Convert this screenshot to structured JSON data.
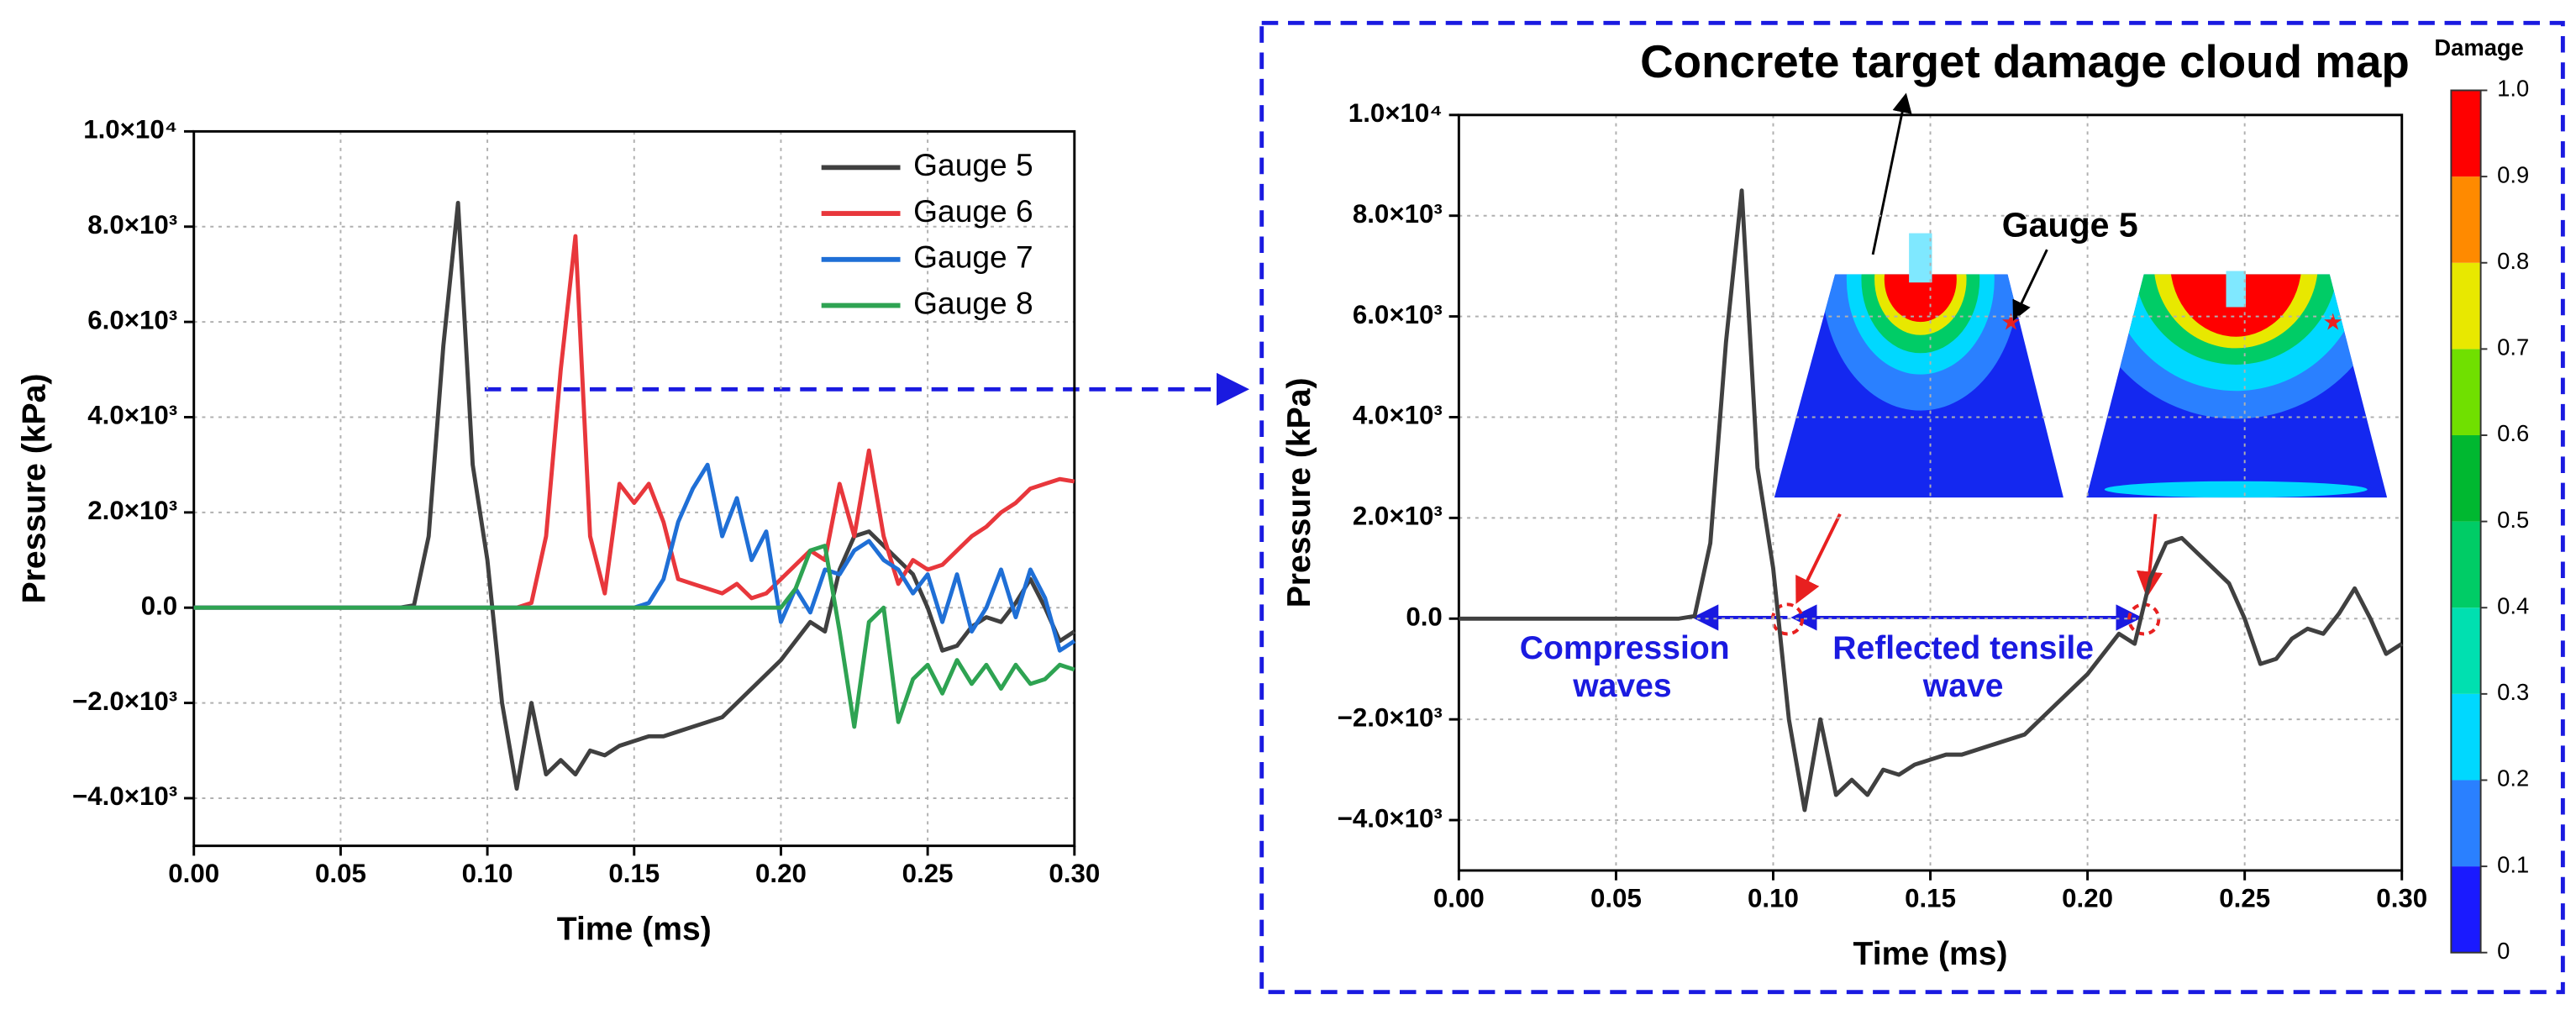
{
  "chart_data": [
    {
      "type": "line",
      "xlabel": "Time (ms)",
      "ylabel": "Pressure (kPa)",
      "legend": "upper right",
      "grid": true,
      "xlim": [
        0,
        0.3
      ],
      "ylim": [
        -5000,
        10000
      ],
      "xticks": [
        {
          "value": 0,
          "label": "0.00"
        },
        {
          "value": 0.05,
          "label": "0.05"
        },
        {
          "value": 0.1,
          "label": "0.10"
        },
        {
          "value": 0.15,
          "label": "0.15"
        },
        {
          "value": 0.2,
          "label": "0.20"
        },
        {
          "value": 0.25,
          "label": "0.25"
        },
        {
          "value": 0.3,
          "label": "0.30"
        }
      ],
      "yticks": [
        {
          "value": -4000,
          "label": "−4.0×10³"
        },
        {
          "value": -2000,
          "label": "−2.0×10³"
        },
        {
          "value": 0,
          "label": "0.0"
        },
        {
          "value": 2000,
          "label": "2.0×10³"
        },
        {
          "value": 4000,
          "label": "4.0×10³"
        },
        {
          "value": 6000,
          "label": "6.0×10³"
        },
        {
          "value": 8000,
          "label": "8.0×10³"
        },
        {
          "value": 10000,
          "label": "1.0×10⁴"
        }
      ],
      "x": [
        0,
        0.005,
        0.01,
        0.015,
        0.02,
        0.025,
        0.03,
        0.035,
        0.04,
        0.045,
        0.05,
        0.055,
        0.06,
        0.065,
        0.07,
        0.075,
        0.08,
        0.085,
        0.09,
        0.095,
        0.1,
        0.105,
        0.11,
        0.115,
        0.12,
        0.125,
        0.13,
        0.135,
        0.14,
        0.145,
        0.15,
        0.155,
        0.16,
        0.165,
        0.17,
        0.175,
        0.18,
        0.185,
        0.19,
        0.195,
        0.2,
        0.205,
        0.21,
        0.215,
        0.22,
        0.225,
        0.23,
        0.235,
        0.24,
        0.245,
        0.25,
        0.255,
        0.26,
        0.265,
        0.27,
        0.275,
        0.28,
        0.285,
        0.29,
        0.295,
        0.3
      ],
      "series": [
        {
          "name": "Gauge 5",
          "color": "#404040",
          "values": [
            0,
            0,
            0,
            0,
            0,
            0,
            0,
            0,
            0,
            0,
            0,
            0,
            0,
            0,
            0,
            50,
            1500,
            5500,
            8500,
            3000,
            1000,
            -2000,
            -3800,
            -2000,
            -3500,
            -3200,
            -3500,
            -3000,
            -3100,
            -2900,
            -2800,
            -2700,
            -2700,
            -2600,
            -2500,
            -2400,
            -2300,
            -2000,
            -1700,
            -1400,
            -1100,
            -700,
            -300,
            -500,
            800,
            1500,
            1600,
            1300,
            1000,
            700,
            0,
            -900,
            -800,
            -400,
            -200,
            -300,
            100,
            600,
            0,
            -700,
            -500
          ]
        },
        {
          "name": "Gauge 6",
          "color": "#e8373c",
          "values": [
            0,
            0,
            0,
            0,
            0,
            0,
            0,
            0,
            0,
            0,
            0,
            0,
            0,
            0,
            0,
            0,
            0,
            0,
            0,
            0,
            0,
            0,
            0,
            100,
            1500,
            5000,
            7800,
            1500,
            300,
            2600,
            2200,
            2600,
            1800,
            600,
            500,
            400,
            300,
            500,
            200,
            300,
            600,
            900,
            1200,
            1000,
            2600,
            1500,
            3300,
            1500,
            500,
            1000,
            800,
            900,
            1200,
            1500,
            1700,
            2000,
            2200,
            2500,
            2600,
            2700,
            2650
          ]
        },
        {
          "name": "Gauge 7",
          "color": "#1f6fd6",
          "values": [
            0,
            0,
            0,
            0,
            0,
            0,
            0,
            0,
            0,
            0,
            0,
            0,
            0,
            0,
            0,
            0,
            0,
            0,
            0,
            0,
            0,
            0,
            0,
            0,
            0,
            0,
            0,
            0,
            0,
            0,
            0,
            100,
            600,
            1800,
            2500,
            3000,
            1500,
            2300,
            1000,
            1600,
            -300,
            400,
            -100,
            800,
            700,
            1200,
            1400,
            1000,
            800,
            300,
            700,
            -300,
            700,
            -500,
            0,
            800,
            -200,
            800,
            200,
            -900,
            -700
          ]
        },
        {
          "name": "Gauge 8",
          "color": "#2ea352",
          "values": [
            0,
            0,
            0,
            0,
            0,
            0,
            0,
            0,
            0,
            0,
            0,
            0,
            0,
            0,
            0,
            0,
            0,
            0,
            0,
            0,
            0,
            0,
            0,
            0,
            0,
            0,
            0,
            0,
            0,
            0,
            0,
            0,
            0,
            0,
            0,
            0,
            0,
            0,
            0,
            0,
            0,
            400,
            1200,
            1300,
            -500,
            -2500,
            -300,
            0,
            -2400,
            -1500,
            -1200,
            -1800,
            -1100,
            -1600,
            -1200,
            -1700,
            -1200,
            -1600,
            -1500,
            -1200,
            -1300
          ]
        }
      ]
    },
    {
      "type": "line",
      "xlabel": "Time (ms)",
      "ylabel": "Pressure (kPa)",
      "grid": true,
      "xlim": [
        0,
        0.3
      ],
      "ylim": [
        -5000,
        10000
      ],
      "xticks": [
        {
          "value": 0,
          "label": "0.00"
        },
        {
          "value": 0.05,
          "label": "0.05"
        },
        {
          "value": 0.1,
          "label": "0.10"
        },
        {
          "value": 0.15,
          "label": "0.15"
        },
        {
          "value": 0.2,
          "label": "0.20"
        },
        {
          "value": 0.25,
          "label": "0.25"
        },
        {
          "value": 0.3,
          "label": "0.30"
        }
      ],
      "yticks": [
        {
          "value": -4000,
          "label": "−4.0×10³"
        },
        {
          "value": -2000,
          "label": "−2.0×10³"
        },
        {
          "value": 0,
          "label": "0.0"
        },
        {
          "value": 2000,
          "label": "2.0×10³"
        },
        {
          "value": 4000,
          "label": "4.0×10³"
        },
        {
          "value": 6000,
          "label": "6.0×10³"
        },
        {
          "value": 8000,
          "label": "8.0×10³"
        },
        {
          "value": 10000,
          "label": "1.0×10⁴"
        }
      ],
      "x": [
        0,
        0.005,
        0.01,
        0.015,
        0.02,
        0.025,
        0.03,
        0.035,
        0.04,
        0.045,
        0.05,
        0.055,
        0.06,
        0.065,
        0.07,
        0.075,
        0.08,
        0.085,
        0.09,
        0.095,
        0.1,
        0.105,
        0.11,
        0.115,
        0.12,
        0.125,
        0.13,
        0.135,
        0.14,
        0.145,
        0.15,
        0.155,
        0.16,
        0.165,
        0.17,
        0.175,
        0.18,
        0.185,
        0.19,
        0.195,
        0.2,
        0.205,
        0.21,
        0.215,
        0.22,
        0.225,
        0.23,
        0.235,
        0.24,
        0.245,
        0.25,
        0.255,
        0.26,
        0.265,
        0.27,
        0.275,
        0.28,
        0.285,
        0.29,
        0.295,
        0.3
      ],
      "series": [
        {
          "color": "#404040",
          "values": [
            0,
            0,
            0,
            0,
            0,
            0,
            0,
            0,
            0,
            0,
            0,
            0,
            0,
            0,
            0,
            50,
            1500,
            5500,
            8500,
            3000,
            1000,
            -2000,
            -3800,
            -2000,
            -3500,
            -3200,
            -3500,
            -3000,
            -3100,
            -2900,
            -2800,
            -2700,
            -2700,
            -2600,
            -2500,
            -2400,
            -2300,
            -2000,
            -1700,
            -1400,
            -1100,
            -700,
            -300,
            -500,
            800,
            1500,
            1600,
            1300,
            1000,
            700,
            0,
            -900,
            -800,
            -400,
            -200,
            -300,
            100,
            600,
            0,
            -700,
            -500
          ]
        }
      ],
      "annotations": {
        "title": "Concrete target damage cloud map",
        "gauge": "Gauge 5",
        "compression": "Compression waves",
        "reflected": "Reflected tensile wave"
      },
      "colorbar": {
        "title": "Damage",
        "ticks": [
          {
            "value": 0,
            "label": "0"
          },
          0.1,
          0.2,
          0.3,
          0.4,
          0.5,
          0.6,
          0.7,
          0.8,
          0.9,
          {
            "value": 1,
            "label": "1.0"
          }
        ],
        "colors": [
          "#1a1aff",
          "#2a80ff",
          "#00d8ff",
          "#00e0b0",
          "#00cc66",
          "#00b830",
          "#70e000",
          "#e8e800",
          "#ff8a00",
          "#ff0000"
        ]
      }
    }
  ]
}
